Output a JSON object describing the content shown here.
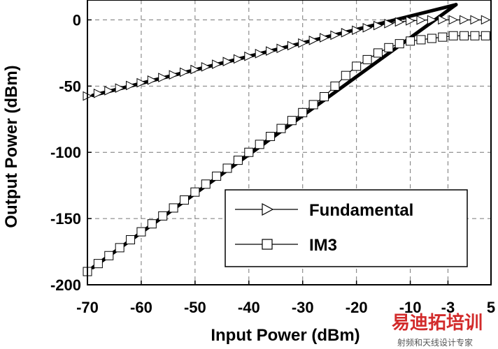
{
  "chart_data": {
    "type": "line",
    "xlabel": "Input Power (dBm)",
    "ylabel": "Output Power (dBm)",
    "xlim": [
      -70,
      5
    ],
    "ylim": [
      -200,
      15
    ],
    "xticks": [
      -70,
      -60,
      -50,
      -40,
      -30,
      -20,
      -10,
      -3,
      5
    ],
    "xtick_labels": [
      "-70",
      "-60",
      "-50",
      "-40",
      "-30",
      "-20",
      "-10",
      "-3",
      "5"
    ],
    "yticks": [
      -200,
      -150,
      -100,
      -50,
      0
    ],
    "ytick_labels": [
      "-200",
      "-150",
      "-100",
      "-50",
      "0"
    ],
    "grid": true,
    "legend_position": "lower-right",
    "series": [
      {
        "name": "Fundamental",
        "marker": "triangle-right",
        "x": [
          -70,
          -68,
          -66,
          -64,
          -62,
          -60,
          -58,
          -56,
          -54,
          -52,
          -50,
          -48,
          -46,
          -44,
          -42,
          -40,
          -38,
          -36,
          -34,
          -32,
          -30,
          -28,
          -26,
          -24,
          -22,
          -20,
          -18,
          -16,
          -14,
          -12,
          -10,
          -8,
          -6,
          -4,
          -2,
          0,
          2,
          4
        ],
        "values": [
          -57.5,
          -55.5,
          -53.5,
          -51.5,
          -49.5,
          -47.5,
          -45.5,
          -43.5,
          -41.5,
          -39.5,
          -37.5,
          -35.5,
          -33.5,
          -31.5,
          -29.5,
          -27.5,
          -25.5,
          -23.5,
          -21.5,
          -19.5,
          -17.5,
          -15.5,
          -13.5,
          -11.6,
          -9.7,
          -7.8,
          -6,
          -4.3,
          -2.8,
          -1.6,
          -0.7,
          -0.2,
          0,
          0,
          0,
          0,
          0,
          0
        ]
      },
      {
        "name": "IM3",
        "marker": "square",
        "x": [
          -70,
          -68,
          -66,
          -64,
          -62,
          -60,
          -58,
          -56,
          -54,
          -52,
          -50,
          -48,
          -46,
          -44,
          -42,
          -40,
          -38,
          -36,
          -34,
          -32,
          -30,
          -28,
          -26,
          -24,
          -22,
          -20,
          -18,
          -16,
          -14,
          -12,
          -10,
          -8,
          -6,
          -4,
          -2,
          0,
          2,
          4
        ],
        "values": [
          -190,
          -184,
          -178,
          -172,
          -166,
          -160,
          -154,
          -148,
          -142,
          -136,
          -130,
          -124,
          -118,
          -112,
          -106,
          -100,
          -94,
          -88,
          -82,
          -76,
          -70,
          -64,
          -58,
          -50,
          -42,
          -35,
          -30,
          -25,
          -21,
          -18,
          -16,
          -15,
          -14,
          -13,
          -12,
          -12,
          -12,
          -12
        ]
      }
    ],
    "reference_lines": [
      {
        "from": [
          -69,
          -57
        ],
        "to": [
          -1.5,
          11.5
        ]
      },
      {
        "from": [
          -69,
          -187
        ],
        "to": [
          -1.5,
          11.5
        ]
      }
    ]
  },
  "watermark": {
    "main": "易迪拓培训",
    "sub": "射频和天线设计专家"
  },
  "colors": {
    "axis": "#000000",
    "grid": "#777777",
    "watermark_red": "#d22b2b",
    "watermark_blue": "#2a5db0"
  }
}
